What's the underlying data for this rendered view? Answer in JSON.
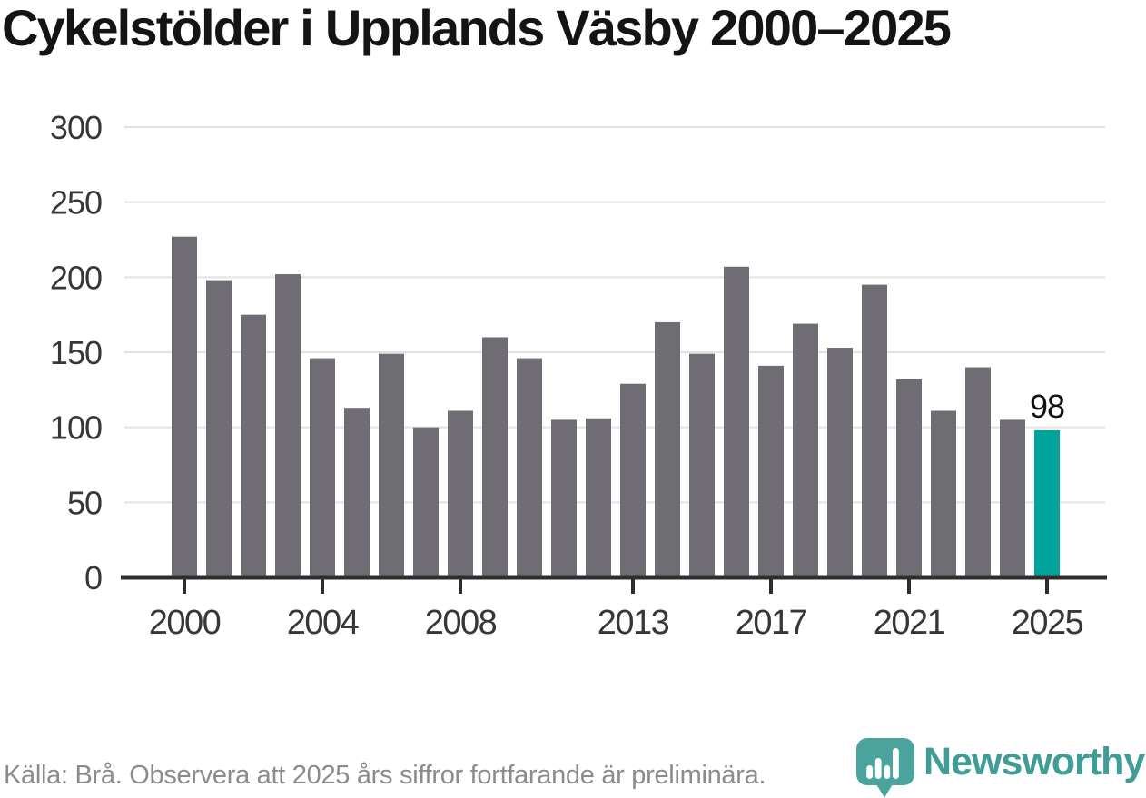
{
  "page": {
    "title": "Cykelstölder i Upplands Väsby 2000–2025",
    "source_note": "Källa: Brå. Observera att 2025 års siffror fortfarande är preliminära.",
    "brand": {
      "name": "Newsworthy",
      "icon": "newsworthy-pin-bar-chart-icon"
    }
  },
  "colors": {
    "background": "#ffffff",
    "bar": "#6f6c74",
    "bar_highlight": "#00a49b",
    "gridline": "#e2e2e2",
    "axis_line": "#2d2d2d",
    "tick_label": "#373737",
    "title_text": "#141414",
    "source_text": "#8b8b8b",
    "value_label_text": "#111111",
    "brand_teal": "#3f9d95",
    "brand_icon_teal": "#4aa49d"
  },
  "chart_data": {
    "type": "bar",
    "title": "Cykelstölder i Upplands Väsby 2000–2025",
    "x": [
      2000,
      2001,
      2002,
      2003,
      2004,
      2005,
      2006,
      2007,
      2008,
      2009,
      2010,
      2011,
      2012,
      2013,
      2014,
      2015,
      2016,
      2017,
      2018,
      2019,
      2020,
      2021,
      2022,
      2023,
      2024,
      2025
    ],
    "values": [
      227,
      198,
      175,
      202,
      146,
      113,
      149,
      100,
      111,
      160,
      146,
      105,
      106,
      129,
      170,
      149,
      207,
      141,
      169,
      153,
      195,
      132,
      111,
      140,
      105,
      98
    ],
    "xlabel": "",
    "ylabel": "",
    "ylim": [
      0,
      300
    ],
    "yticks": [
      0,
      50,
      100,
      150,
      200,
      250,
      300
    ],
    "xtick_years": [
      2000,
      2004,
      2008,
      2013,
      2017,
      2021,
      2025
    ],
    "xtick_labels": [
      "2000",
      "2004",
      "2008",
      "2013",
      "2017",
      "2021",
      "2025"
    ],
    "grid": "horizontal",
    "legend": "none",
    "highlight": {
      "year": 2025,
      "value": 98,
      "label": "98"
    },
    "source_note": "Källa: Brå. Observera att 2025 års siffror fortfarande är preliminära."
  }
}
